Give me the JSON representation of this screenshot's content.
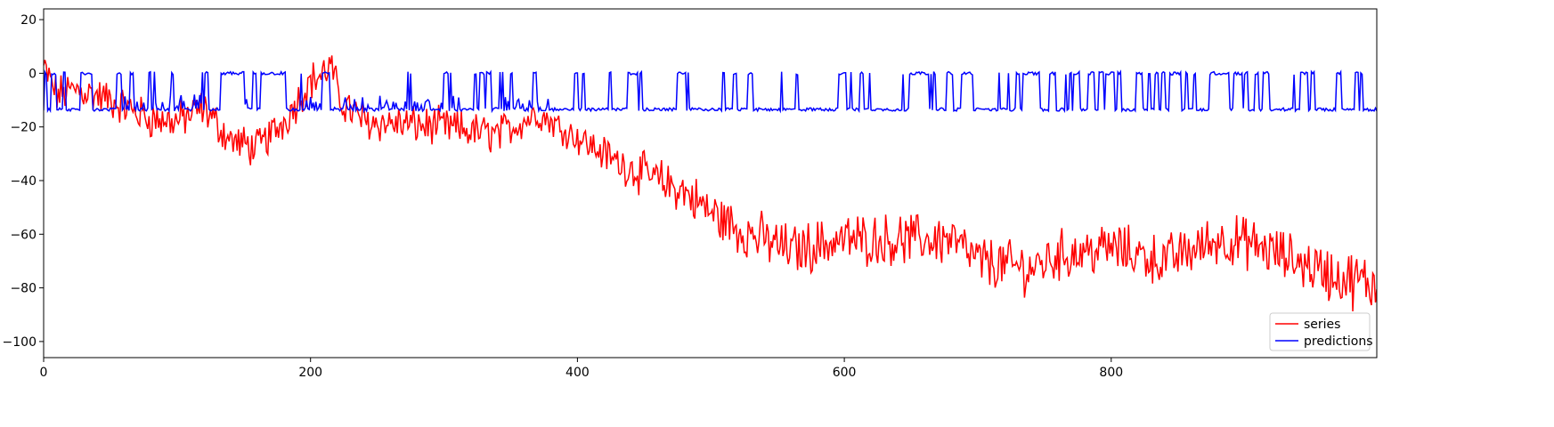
{
  "chart_data": {
    "type": "line",
    "title": "",
    "xlabel": "",
    "ylabel": "",
    "xlim": [
      0,
      999
    ],
    "ylim": [
      -106,
      24
    ],
    "x_ticks": [
      0,
      200,
      400,
      600,
      800
    ],
    "x_tick_labels": [
      "0",
      "200",
      "400",
      "600",
      "800"
    ],
    "y_ticks": [
      20,
      0,
      -20,
      -40,
      -60,
      -80,
      -100
    ],
    "y_tick_labels": [
      "20",
      "0",
      "−20",
      "−40",
      "−60",
      "−80",
      "−100"
    ],
    "grid": false,
    "legend": {
      "placement": "lower-right",
      "entries": [
        "series",
        "predictions"
      ]
    },
    "n_points": 1000,
    "series": [
      {
        "name": "series",
        "color": "#ff0000",
        "trend_knots_x": [
          0,
          10,
          25,
          50,
          80,
          100,
          120,
          140,
          160,
          180,
          200,
          210,
          215,
          222,
          240,
          300,
          340,
          370,
          400,
          430,
          460,
          480,
          500,
          520,
          540,
          560,
          600,
          640,
          680,
          700,
          740,
          760,
          800,
          840,
          860,
          880,
          900,
          940,
          970,
          999
        ],
        "trend_knots_y": [
          2,
          -8,
          -6,
          -10,
          -17,
          -18,
          -13,
          -25,
          -28,
          -18,
          -3,
          0,
          3,
          -10,
          -18,
          -20,
          -23,
          -15,
          -24,
          -33,
          -40,
          -44,
          -52,
          -58,
          -62,
          -66,
          -62,
          -62,
          -62,
          -70,
          -73,
          -68,
          -65,
          -70,
          -66,
          -62,
          -63,
          -70,
          -76,
          -79
        ],
        "noise_amplitude": [
          6,
          6,
          6,
          6,
          6,
          6,
          6,
          6,
          6,
          6,
          6,
          6,
          6,
          6,
          6,
          6,
          6,
          5,
          5,
          6,
          7,
          7,
          8,
          8,
          8,
          8,
          8,
          8,
          8,
          8,
          8,
          8,
          8,
          8,
          8,
          8,
          8,
          8,
          9,
          9
        ]
      },
      {
        "name": "predictions",
        "color": "#0000ff",
        "description_values": {
          "high_level": 0,
          "low_level": -13.5
        },
        "regime_knots_x": [
          0,
          60,
          120,
          180,
          220,
          385,
          999
        ],
        "regime_high_fraction": [
          0.45,
          0.15,
          0.35,
          0.8,
          0.3,
          0.2,
          0.55
        ]
      }
    ]
  }
}
